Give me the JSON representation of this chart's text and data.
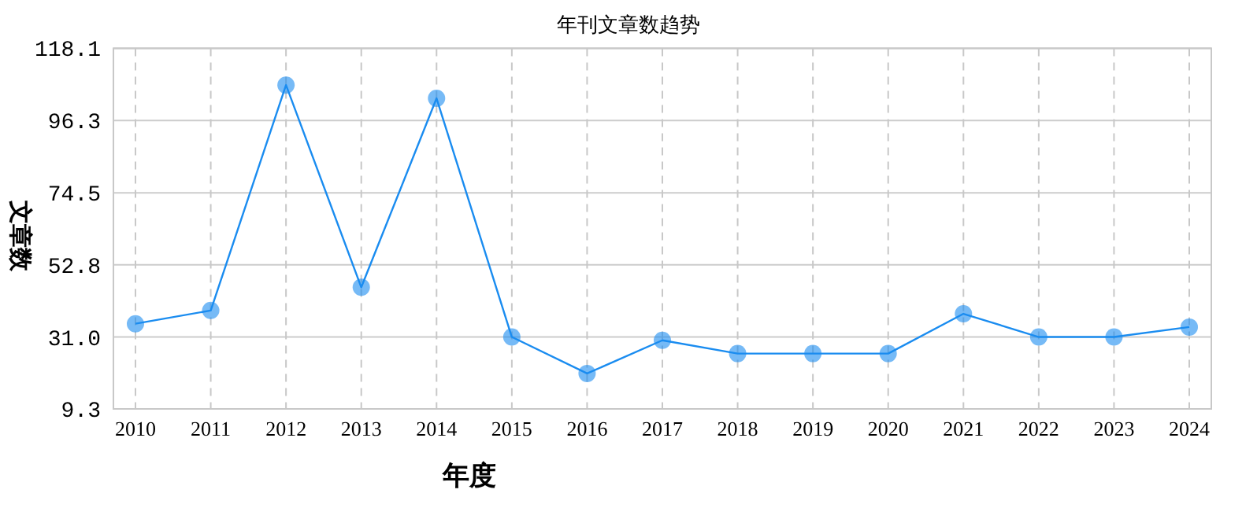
{
  "chart_data": {
    "type": "line",
    "title": "年刊文章数趋势",
    "xlabel": "年度",
    "ylabel": "文章数",
    "categories": [
      "2010",
      "2011",
      "2012",
      "2013",
      "2014",
      "2015",
      "2016",
      "2017",
      "2018",
      "2019",
      "2020",
      "2021",
      "2022",
      "2023",
      "2024"
    ],
    "series": [
      {
        "color": "#1a8cf0",
        "values": [
          35,
          39,
          107,
          46,
          103,
          31,
          20,
          30,
          26,
          26,
          26,
          38,
          31,
          31,
          34
        ]
      }
    ],
    "ylim": [
      9.3,
      118.1
    ],
    "yticks": [
      9.3,
      {
        "value": 31,
        "label": "31.0"
      },
      52.8,
      74.5,
      96.3,
      118.1
    ],
    "grid": true,
    "marker": "circle",
    "line_style": "solid"
  }
}
